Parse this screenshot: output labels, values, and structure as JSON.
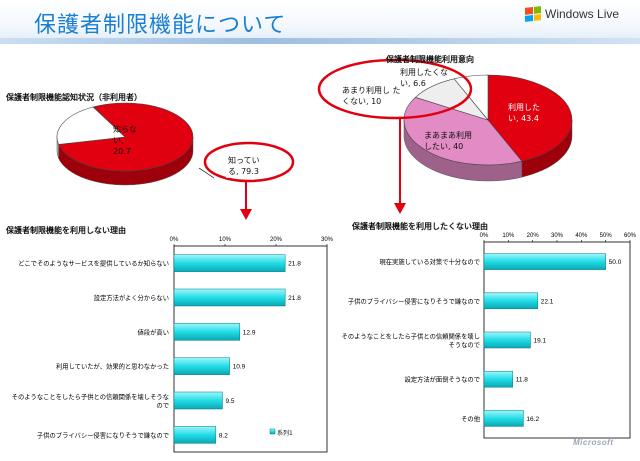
{
  "slide_title": "保護者制限機能について",
  "brand": {
    "name": "Windows Live"
  },
  "footer_logo": "Microsoft",
  "colors": {
    "title": "#1a7fd0",
    "pie_red": "#e1000f",
    "pie_white": "#ffffff",
    "pie_pink": "#e28bc5",
    "bar_cyan": "#2ee0e8",
    "highlight_red": "#e1000f"
  },
  "chart_data": [
    {
      "type": "pie",
      "title": "保護者制限機能認知状況（非利用者）",
      "slices": [
        {
          "label": "知ってい る",
          "value": 79.3
        },
        {
          "label": "知らな い",
          "value": 20.7
        }
      ]
    },
    {
      "type": "pie",
      "title": "保護者制限機能利用意向",
      "slices": [
        {
          "label": "利用した い",
          "value": 43.4
        },
        {
          "label": "まあまあ利用 したい",
          "value": 40.0
        },
        {
          "label": "あまり利用し たくない",
          "value": 10.0
        },
        {
          "label": "利用したくな い",
          "value": 6.6
        }
      ]
    },
    {
      "type": "bar",
      "orientation": "horizontal",
      "title": "保護者制限機能を利用しない理由",
      "xlim": [
        0,
        30
      ],
      "xticks": [
        "0%",
        "10%",
        "20%",
        "30%"
      ],
      "legend": "系列1",
      "categories": [
        "どこでそのようなサービスを提供しているか知らない",
        "設定方法がよく分からない",
        "値段が高い",
        "利用していたが、効果的と思わなかった",
        "そのようなことをしたら子供との信頼関係を壊しそうなので",
        "子供のプライバシー侵害になりそうで嫌なので"
      ],
      "values": [
        21.8,
        21.8,
        12.9,
        10.9,
        9.5,
        8.2
      ]
    },
    {
      "type": "bar",
      "orientation": "horizontal",
      "title": "保護者制限機能を利用したくない理由",
      "xlim": [
        0,
        60
      ],
      "xticks": [
        "0%",
        "10%",
        "20%",
        "30%",
        "40%",
        "50%",
        "60%"
      ],
      "categories": [
        "現在実施している対策で十分なので",
        "子供のプライバシー侵害になりそうで嫌なので",
        "そのようなことをしたら子供との信頼関係を壊しそうなので",
        "設定方法が面倒そうなので",
        "その他"
      ],
      "values": [
        50.0,
        22.1,
        19.1,
        11.8,
        16.2
      ]
    }
  ]
}
